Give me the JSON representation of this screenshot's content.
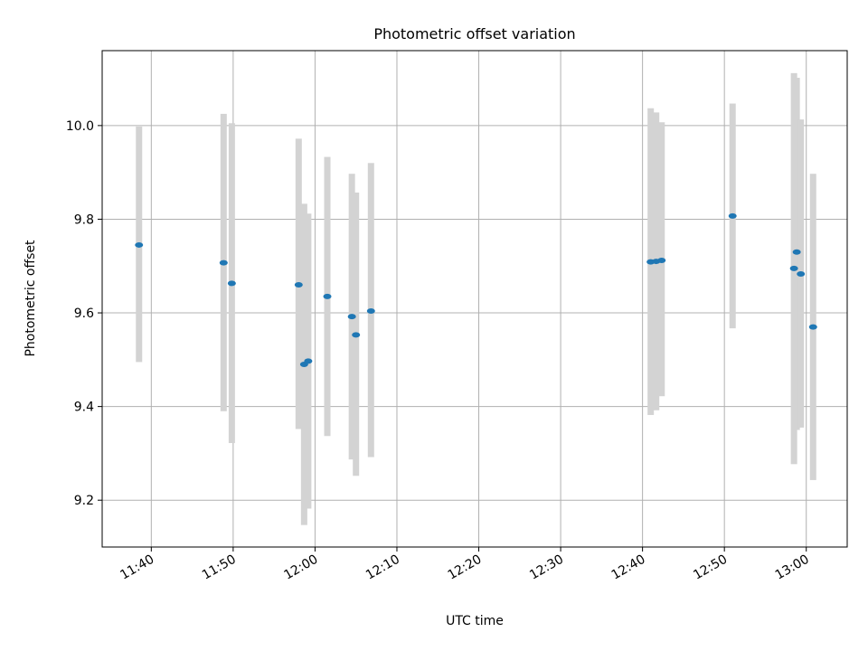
{
  "chart_data": {
    "type": "scatter",
    "title": "Photometric offset variation",
    "xlabel": "UTC time",
    "ylabel": "Photometric offset",
    "x_axis_kind": "time",
    "xlim": [
      "11:34",
      "13:05"
    ],
    "ylim": [
      9.1,
      10.16
    ],
    "xticks": [
      "11:40",
      "11:50",
      "12:00",
      "12:10",
      "12:20",
      "12:30",
      "12:40",
      "12:50",
      "13:00"
    ],
    "yticks": [
      "9.2",
      "9.4",
      "9.6",
      "9.8",
      "10.0"
    ],
    "grid": true,
    "point_color": "#1f77b4",
    "errorbar_color": "#d3d3d3",
    "points": [
      {
        "t": "11:38:30",
        "y": 9.745,
        "ylo": 9.495,
        "yhi": 9.998
      },
      {
        "t": "11:48:50",
        "y": 9.707,
        "ylo": 9.39,
        "yhi": 10.025
      },
      {
        "t": "11:49:50",
        "y": 9.663,
        "ylo": 9.322,
        "yhi": 10.005
      },
      {
        "t": "11:58:00",
        "y": 9.66,
        "ylo": 9.352,
        "yhi": 9.972
      },
      {
        "t": "11:58:40",
        "y": 9.49,
        "ylo": 9.147,
        "yhi": 9.833
      },
      {
        "t": "11:59:10",
        "y": 9.497,
        "ylo": 9.182,
        "yhi": 9.812
      },
      {
        "t": "12:01:30",
        "y": 9.635,
        "ylo": 9.337,
        "yhi": 9.933
      },
      {
        "t": "12:04:30",
        "y": 9.592,
        "ylo": 9.287,
        "yhi": 9.897
      },
      {
        "t": "12:05:00",
        "y": 9.553,
        "ylo": 9.252,
        "yhi": 9.857
      },
      {
        "t": "12:06:50",
        "y": 9.604,
        "ylo": 9.292,
        "yhi": 9.92
      },
      {
        "t": "12:41:00",
        "y": 9.709,
        "ylo": 9.382,
        "yhi": 10.037
      },
      {
        "t": "12:41:40",
        "y": 9.71,
        "ylo": 9.392,
        "yhi": 10.028
      },
      {
        "t": "12:42:20",
        "y": 9.712,
        "ylo": 9.422,
        "yhi": 10.007
      },
      {
        "t": "12:51:00",
        "y": 9.807,
        "ylo": 9.567,
        "yhi": 10.047
      },
      {
        "t": "12:58:30",
        "y": 9.695,
        "ylo": 9.277,
        "yhi": 10.112
      },
      {
        "t": "12:58:50",
        "y": 9.73,
        "ylo": 9.35,
        "yhi": 10.102
      },
      {
        "t": "12:59:20",
        "y": 9.683,
        "ylo": 9.355,
        "yhi": 10.013
      },
      {
        "t": "13:00:50",
        "y": 9.57,
        "ylo": 9.243,
        "yhi": 9.897
      }
    ]
  }
}
